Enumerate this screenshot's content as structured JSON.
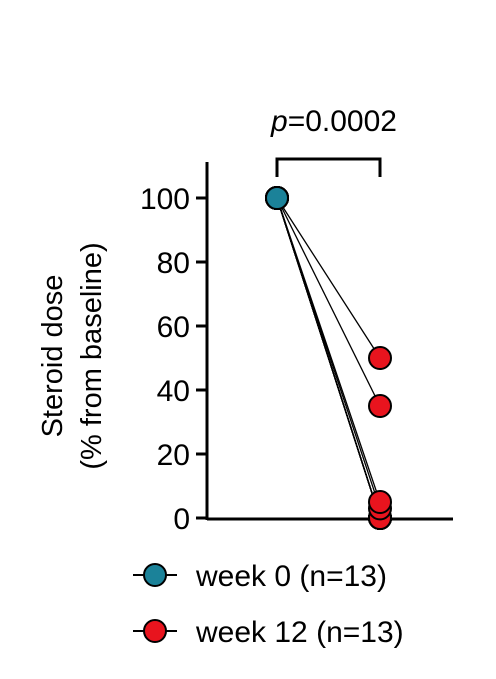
{
  "chart_data": {
    "type": "scatter",
    "style": "paired-before-after",
    "ylabel_line1": "Steroid dose",
    "ylabel_line2": "(% from baseline)",
    "ylim": [
      0,
      100
    ],
    "yticks": [
      "0",
      "20",
      "40",
      "60",
      "80",
      "100"
    ],
    "categories": [
      "week 0",
      "week 12"
    ],
    "series": [
      {
        "name": "week 0 (n=13)",
        "color": "#1b8299",
        "values": [
          100,
          100,
          100,
          100,
          100,
          100,
          100,
          100,
          100,
          100,
          100,
          100,
          100
        ]
      },
      {
        "name": "week 12 (n=13)",
        "color": "#e8141e",
        "values": [
          50,
          35,
          5,
          3,
          0,
          0,
          0,
          0,
          0,
          0,
          0,
          0,
          0
        ]
      }
    ],
    "annotation": {
      "p_italic": "p",
      "p_value": "=0.0002"
    },
    "grid": false,
    "legend_position": "bottom"
  }
}
